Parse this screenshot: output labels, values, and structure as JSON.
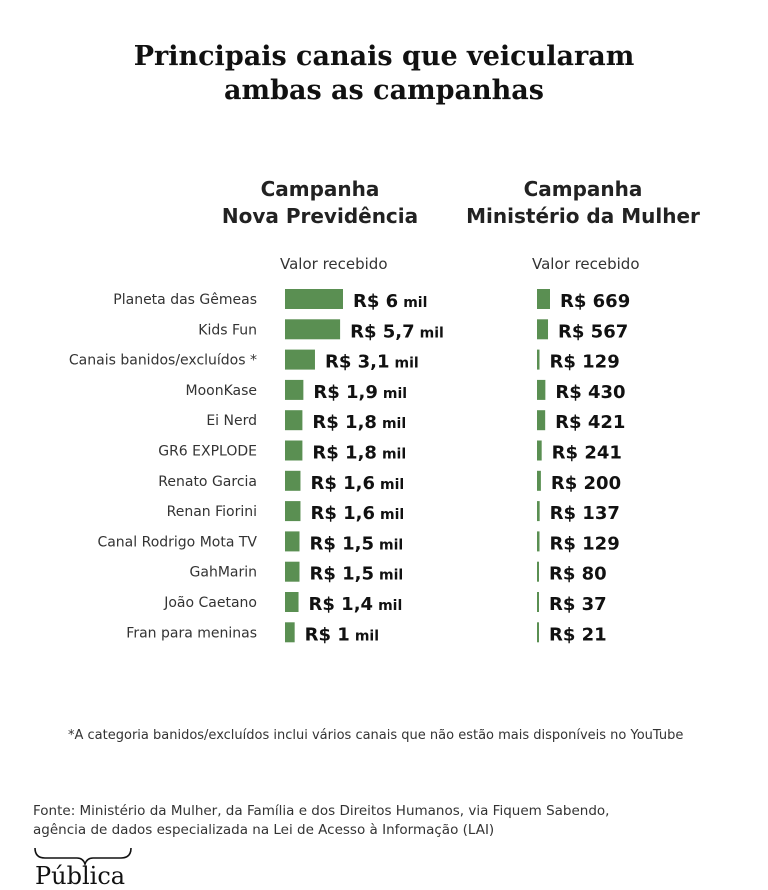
{
  "title_line1": "Principais canais que veicularam",
  "title_line2": "ambas as campanhas",
  "columns": {
    "left": {
      "line1": "Campanha",
      "line2": "Nova Previdência",
      "subtitle": "Valor recebido"
    },
    "right": {
      "line1": "Campanha",
      "line2": "Ministério da Mulher",
      "subtitle": "Valor recebido"
    }
  },
  "chart_data": {
    "type": "bar",
    "orientation": "horizontal",
    "bar_color": "#5a8f52",
    "categories": [
      "Planeta das Gêmeas",
      "Kids Fun",
      "Canais banidos/excluídos *",
      "MoonKase",
      "Ei Nerd",
      "GR6 EXPLODE",
      "Renato Garcia",
      "Renan Fiorini",
      "Canal Rodrigo Mota TV",
      "GahMarin",
      "João Caetano",
      "Fran para meninas"
    ],
    "series": [
      {
        "name": "Campanha Nova Previdência",
        "values": [
          6000,
          5700,
          3100,
          1900,
          1800,
          1800,
          1600,
          1600,
          1500,
          1500,
          1400,
          1000
        ],
        "label_prefix": [
          "R$ 6",
          "R$ 5,7",
          "R$ 3,1",
          "R$ 1,9",
          "R$ 1,8",
          "R$ 1,8",
          "R$ 1,6",
          "R$ 1,6",
          "R$ 1,5",
          "R$ 1,5",
          "R$ 1,4",
          "R$ 1"
        ],
        "label_suffix": "mil"
      },
      {
        "name": "Campanha Ministério da Mulher",
        "values": [
          669,
          567,
          129,
          430,
          421,
          241,
          200,
          137,
          129,
          80,
          37,
          21
        ],
        "label_prefix": [
          "R$ 669",
          "R$ 567",
          "R$ 129",
          "R$ 430",
          "R$ 421",
          "R$ 241",
          "R$ 200",
          "R$ 137",
          "R$ 129",
          "R$ 80",
          "R$ 37",
          "R$ 21"
        ],
        "label_suffix": ""
      }
    ]
  },
  "footnote": "*A categoria banidos/excluídos inclui vários canais que não estão mais disponíveis no YouTube",
  "source_line1": "Fonte: Ministério da Mulher, da Família e dos Direitos Humanos, via Fiquem Sabendo,",
  "source_line2": "agência de dados especializada na Lei de Acesso à Informação (LAI)",
  "logo_text": "Pública"
}
